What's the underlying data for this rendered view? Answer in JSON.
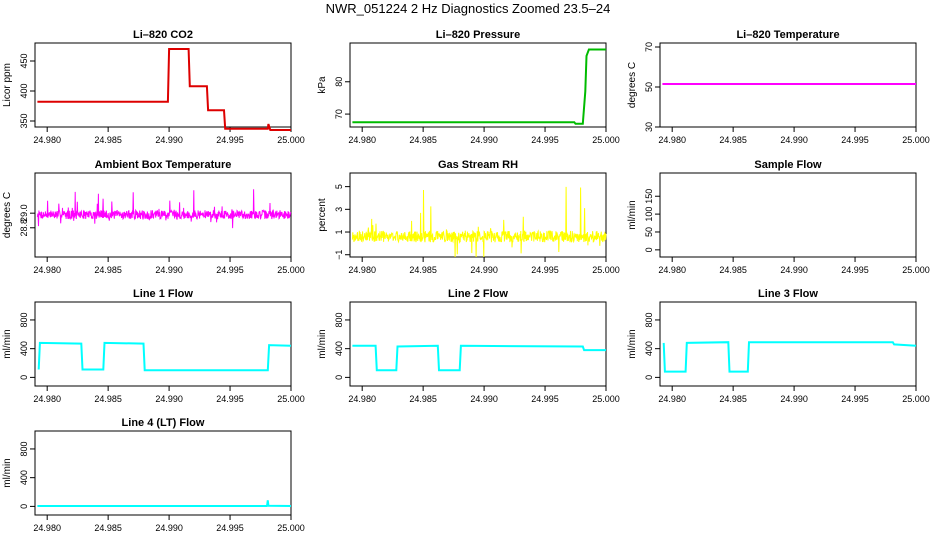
{
  "page": {
    "title": "NWR_051224  2 Hz Diagnostics Zoomed 23.5–24"
  },
  "colors": {
    "co2": "#dd0000",
    "pressure": "#00bb00",
    "temperature": "#ff00ff",
    "box_temp": "#ff00ff",
    "rh": "#ffff00",
    "sample_flow": "#00ffff",
    "line_flow": "#00ffff",
    "axis": "#000000"
  },
  "chart_data": [
    {
      "id": "co2",
      "type": "line",
      "title": "Li–820 CO2",
      "xlabel": "",
      "ylabel": "Licor ppm",
      "xlim": [
        24.979,
        25.0
      ],
      "ylim": [
        340,
        480
      ],
      "xticks": [
        24.98,
        24.985,
        24.99,
        24.995,
        25.0
      ],
      "xtick_labels": [
        "24.980",
        "24.985",
        "24.990",
        "24.995",
        "25.000"
      ],
      "yticks": [
        350,
        400,
        450
      ],
      "ytick_labels": [
        "350",
        "400",
        "450"
      ],
      "color": "#dd0000",
      "step": true,
      "series": [
        {
          "x": [
            24.9792,
            24.9899,
            24.99,
            24.9916,
            24.9917,
            24.9931,
            24.9932,
            24.9945,
            24.9946,
            24.9981,
            24.99815,
            24.9983,
            25.0
          ],
          "y": [
            382,
            382,
            470,
            470,
            408,
            408,
            368,
            368,
            337,
            337,
            345,
            335,
            335
          ]
        }
      ]
    },
    {
      "id": "pressure",
      "type": "line",
      "title": "Li–820 Pressure",
      "xlabel": "",
      "ylabel": "kPa",
      "xlim": [
        24.979,
        25.0
      ],
      "ylim": [
        66,
        92
      ],
      "xticks": [
        24.98,
        24.985,
        24.99,
        24.995,
        25.0
      ],
      "xtick_labels": [
        "24.980",
        "24.985",
        "24.990",
        "24.995",
        "25.000"
      ],
      "yticks": [
        70,
        80
      ],
      "ytick_labels": [
        "70",
        "80"
      ],
      "color": "#00bb00",
      "series": [
        {
          "x": [
            24.9792,
            24.9974,
            24.9975,
            24.9981,
            24.9983,
            24.9984,
            24.9986,
            25.0
          ],
          "y": [
            67.5,
            67.5,
            67,
            67,
            77,
            88,
            90,
            90
          ]
        }
      ]
    },
    {
      "id": "temperature",
      "type": "line",
      "title": "Li–820 Temperature",
      "xlabel": "",
      "ylabel": "degrees C",
      "xlim": [
        24.979,
        25.0
      ],
      "ylim": [
        30,
        72
      ],
      "xticks": [
        24.98,
        24.985,
        24.99,
        24.995,
        25.0
      ],
      "xtick_labels": [
        "24.980",
        "24.985",
        "24.990",
        "24.995",
        "25.000"
      ],
      "yticks": [
        30,
        50,
        70
      ],
      "ytick_labels": [
        "30",
        "50",
        "70"
      ],
      "color": "#ff00ff",
      "series": [
        {
          "x": [
            24.9792,
            25.0
          ],
          "y": [
            51.5,
            51.5
          ]
        }
      ]
    },
    {
      "id": "box_temp",
      "type": "line",
      "title": "Ambient Box Temperature",
      "xlabel": "",
      "ylabel": "degrees C",
      "xlim": [
        24.979,
        25.0
      ],
      "ylim": [
        28.4,
        29.55
      ],
      "xticks": [
        24.98,
        24.985,
        24.99,
        24.995,
        25.0
      ],
      "xtick_labels": [
        "24.980",
        "24.985",
        "24.990",
        "24.995",
        "25.000"
      ],
      "yticks": [
        28.8,
        29.0
      ],
      "ytick_labels": [
        "28.8",
        "29.0"
      ],
      "color": "#ff00ff",
      "noise": {
        "center": 28.98,
        "spread": 0.06,
        "spikes": 0.28,
        "n": 700,
        "seed": 7
      }
    },
    {
      "id": "rh",
      "type": "line",
      "title": "Gas Stream RH",
      "xlabel": "",
      "ylabel": "percent",
      "xlim": [
        24.979,
        25.0
      ],
      "ylim": [
        -1.2,
        6.2
      ],
      "xticks": [
        24.98,
        24.985,
        24.99,
        24.995,
        25.0
      ],
      "xtick_labels": [
        "24.980",
        "24.985",
        "24.990",
        "24.995",
        "25.000"
      ],
      "yticks": [
        -1,
        1,
        3,
        5
      ],
      "ytick_labels": [
        "−1",
        "1",
        "3",
        "5"
      ],
      "color": "#ffff00",
      "noise": {
        "center": 0.6,
        "spread": 0.5,
        "spikes": 3.5,
        "n": 700,
        "seed": 3
      }
    },
    {
      "id": "sample_flow",
      "type": "line",
      "title": "Sample Flow",
      "xlabel": "",
      "ylabel": "ml/min",
      "xlim": [
        24.979,
        25.0
      ],
      "ylim": [
        -20,
        215
      ],
      "xticks": [
        24.98,
        24.985,
        24.99,
        24.995,
        25.0
      ],
      "xtick_labels": [
        "24.980",
        "24.985",
        "24.990",
        "24.995",
        "25.000"
      ],
      "yticks": [
        0,
        50,
        100,
        150
      ],
      "ytick_labels": [
        "0",
        "50",
        "100",
        "150"
      ],
      "color": "#00ffff",
      "series": []
    },
    {
      "id": "line1",
      "type": "line",
      "title": "Line 1 Flow",
      "xlabel": "",
      "ylabel": "ml/min",
      "xlim": [
        24.979,
        25.0
      ],
      "ylim": [
        -120,
        1050
      ],
      "xticks": [
        24.98,
        24.985,
        24.99,
        24.995,
        25.0
      ],
      "xtick_labels": [
        "24.980",
        "24.985",
        "24.990",
        "24.995",
        "25.000"
      ],
      "yticks": [
        0,
        400,
        800
      ],
      "ytick_labels": [
        "0",
        "400",
        "800"
      ],
      "color": "#00ffff",
      "step": true,
      "series": [
        {
          "x": [
            24.9793,
            24.9794,
            24.9828,
            24.9829,
            24.9846,
            24.9847,
            24.9879,
            24.988,
            24.9981,
            24.9982,
            25.0
          ],
          "y": [
            110,
            480,
            470,
            110,
            110,
            480,
            470,
            100,
            100,
            450,
            440
          ]
        }
      ]
    },
    {
      "id": "line2",
      "type": "line",
      "title": "Line 2 Flow",
      "xlabel": "",
      "ylabel": "ml/min",
      "xlim": [
        24.979,
        25.0
      ],
      "ylim": [
        -120,
        1050
      ],
      "xticks": [
        24.98,
        24.985,
        24.99,
        24.995,
        25.0
      ],
      "xtick_labels": [
        "24.980",
        "24.985",
        "24.990",
        "24.995",
        "25.000"
      ],
      "yticks": [
        0,
        400,
        800
      ],
      "ytick_labels": [
        "0",
        "400",
        "800"
      ],
      "color": "#00ffff",
      "step": true,
      "series": [
        {
          "x": [
            24.9792,
            24.9811,
            24.9812,
            24.9828,
            24.9829,
            24.9862,
            24.9863,
            24.988,
            24.9881,
            24.9981,
            24.9982,
            25.0
          ],
          "y": [
            440,
            440,
            100,
            100,
            430,
            440,
            100,
            100,
            440,
            430,
            380,
            380
          ]
        }
      ]
    },
    {
      "id": "line3",
      "type": "line",
      "title": "Line 3 Flow",
      "xlabel": "",
      "ylabel": "ml/min",
      "xlim": [
        24.979,
        25.0
      ],
      "ylim": [
        -120,
        1050
      ],
      "xticks": [
        24.98,
        24.985,
        24.99,
        24.995,
        25.0
      ],
      "xtick_labels": [
        "24.980",
        "24.985",
        "24.990",
        "24.995",
        "25.000"
      ],
      "yticks": [
        0,
        400,
        800
      ],
      "ytick_labels": [
        "0",
        "400",
        "800"
      ],
      "color": "#00ffff",
      "step": true,
      "series": [
        {
          "x": [
            24.9793,
            24.9794,
            24.9811,
            24.9812,
            24.9846,
            24.9847,
            24.9862,
            24.9863,
            24.9981,
            24.9982,
            25.0
          ],
          "y": [
            480,
            80,
            80,
            480,
            490,
            80,
            80,
            490,
            490,
            460,
            440
          ]
        }
      ]
    },
    {
      "id": "line4",
      "type": "line",
      "title": "Line 4 (LT) Flow",
      "xlabel": "",
      "ylabel": "ml/min",
      "xlim": [
        24.979,
        25.0
      ],
      "ylim": [
        -120,
        1050
      ],
      "xticks": [
        24.98,
        24.985,
        24.99,
        24.995,
        25.0
      ],
      "xtick_labels": [
        "24.980",
        "24.985",
        "24.990",
        "24.995",
        "25.000"
      ],
      "yticks": [
        0,
        400,
        800
      ],
      "ytick_labels": [
        "0",
        "400",
        "800"
      ],
      "color": "#00ffff",
      "series": [
        {
          "x": [
            24.9792,
            24.998,
            24.99805,
            24.9981,
            24.99815,
            25.0
          ],
          "y": [
            5,
            5,
            20,
            85,
            10,
            5
          ]
        }
      ]
    }
  ]
}
